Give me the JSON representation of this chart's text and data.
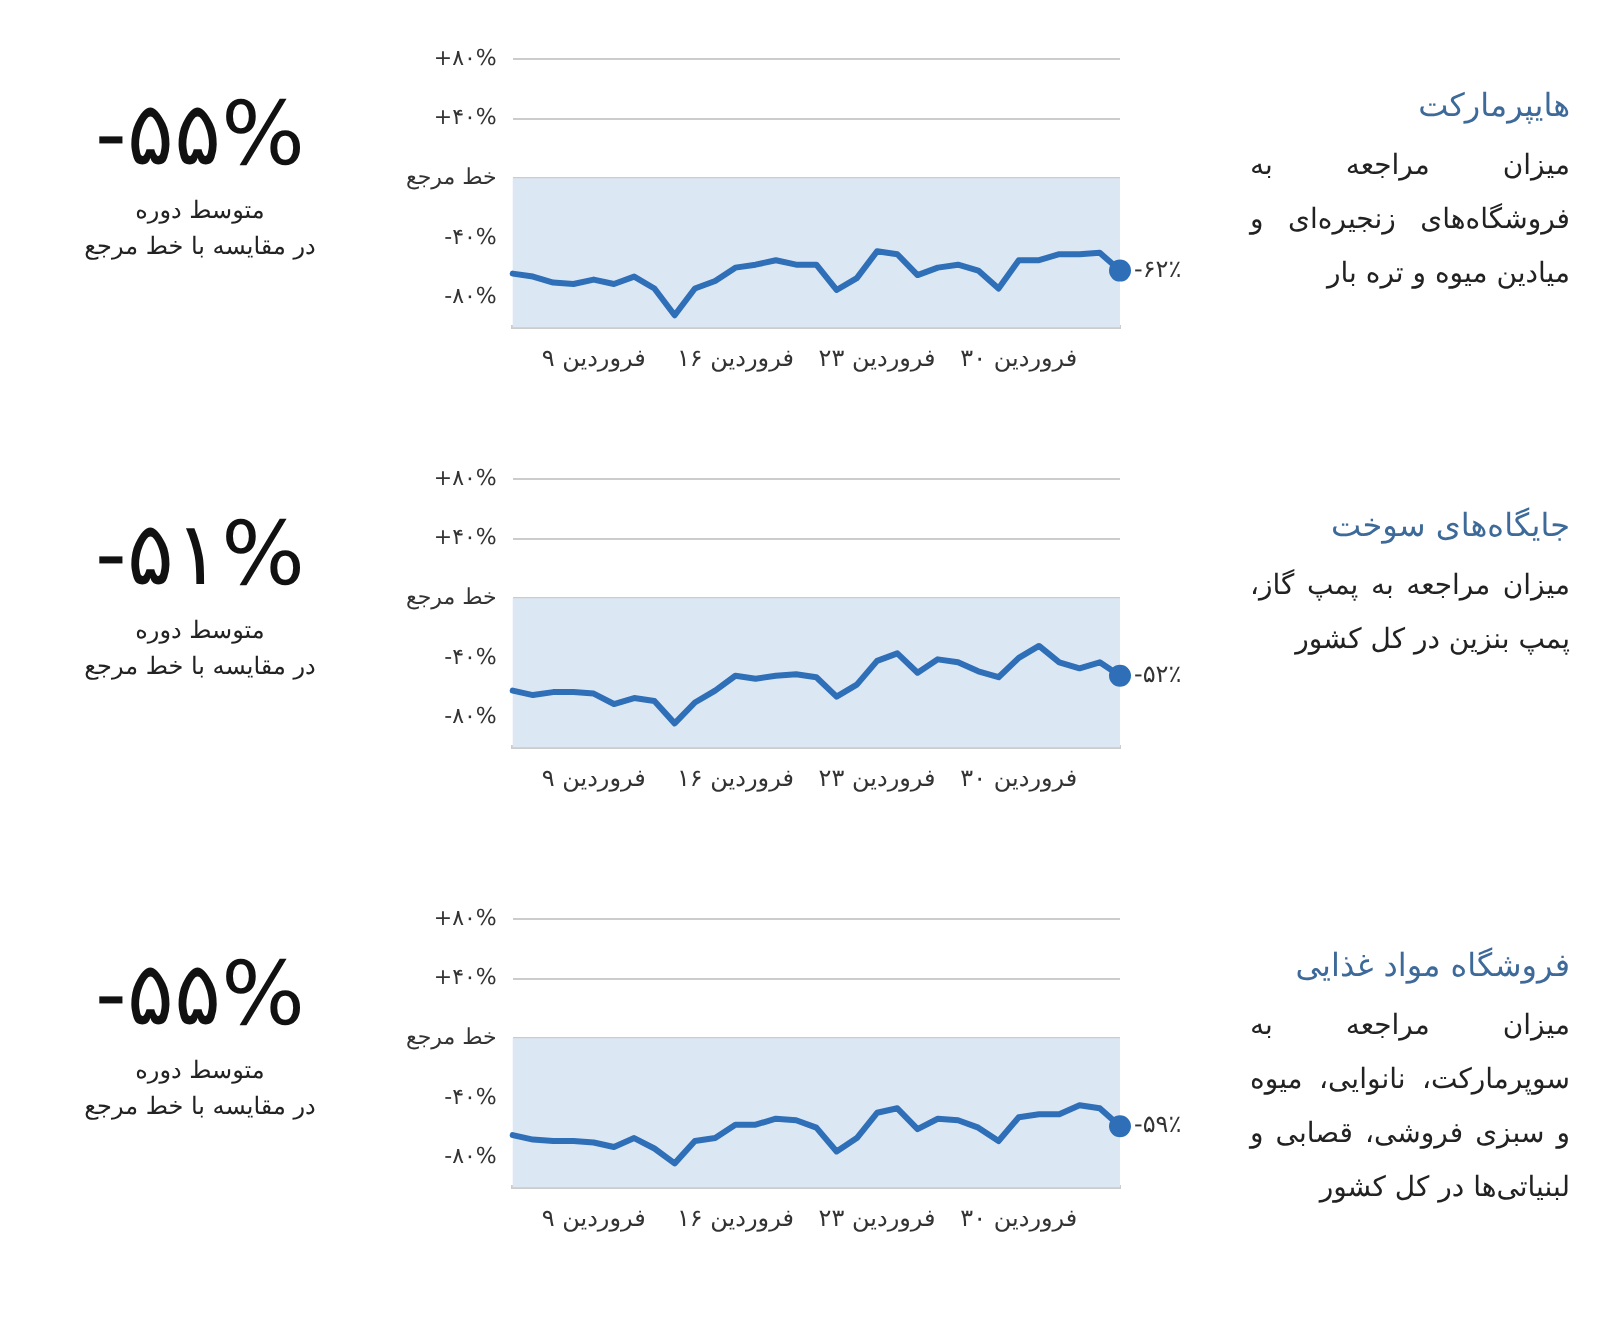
{
  "chart_data": [
    {
      "type": "line",
      "annotations": [
        "-۵۵%",
        "متوسط دوره",
        "در مقایسه با خط مرجع",
        "-۶۲٪",
        "هایپرمارکت",
        "میزان مراجعه به فروشگاه‌های زنجیره‌ای و میادین میوه و تره بار"
      ],
      "categories": [
        null,
        null,
        null,
        null,
        "۹ فروردین",
        null,
        null,
        null,
        null,
        null,
        null,
        "۱۶ فروردین",
        null,
        null,
        null,
        null,
        null,
        null,
        "۲۳ فروردین",
        null,
        null,
        null,
        null,
        null,
        null,
        "۳۰ فروردین",
        null,
        null,
        null,
        null,
        null
      ],
      "series": [
        {
          "color": "#2f6fb8",
          "values": [
            -64,
            -66,
            -70,
            -71,
            -68,
            -71,
            -66,
            -74,
            -92,
            -74,
            -69,
            -60,
            -58,
            -55,
            -58,
            -58,
            -75,
            -67,
            -49,
            -51,
            -65,
            -60,
            -58,
            -62,
            -74,
            -55,
            -55,
            -51,
            -51,
            -50,
            -62
          ]
        }
      ],
      "ylim": [
        -100,
        80
      ],
      "yticks": [
        {
          "value": 80,
          "label": "+۸۰%"
        },
        {
          "value": 40,
          "label": "+۴۰%"
        },
        {
          "value": 0,
          "label": "خط مرجع"
        },
        {
          "value": -40,
          "label": "-۴۰%"
        },
        {
          "value": -80,
          "label": "-۸۰%"
        }
      ],
      "bands": [
        {
          "axis": "y",
          "from": -100,
          "to": 0,
          "color": "#dce7f4"
        }
      ],
      "grid": "y",
      "legend": false
    },
    {
      "type": "line",
      "annotations": [
        "-۵۱%",
        "متوسط دوره",
        "در مقایسه با خط مرجع",
        "-۵۲٪",
        "جایگاه‌های سوخت",
        "میزان مراجعه به پمپ گاز، پمپ بنزین در کل کشور"
      ],
      "categories": [
        null,
        null,
        null,
        null,
        "۹ فروردین",
        null,
        null,
        null,
        null,
        null,
        null,
        "۱۶ فروردین",
        null,
        null,
        null,
        null,
        null,
        null,
        "۲۳ فروردین",
        null,
        null,
        null,
        null,
        null,
        null,
        "۳۰ فروردین",
        null,
        null,
        null,
        null,
        null
      ],
      "series": [
        {
          "color": "#2f6fb8",
          "values": [
            -62,
            -65,
            -63,
            -63,
            -64,
            -71,
            -67,
            -69,
            -84,
            -70,
            -62,
            -52,
            -54,
            -52,
            -51,
            -53,
            -66,
            -58,
            -42,
            -37,
            -50,
            -41,
            -43,
            -49,
            -53,
            -40,
            -32,
            -43,
            -47,
            -43,
            -52
          ]
        }
      ],
      "ylim": [
        -100,
        80
      ],
      "yticks": [
        {
          "value": 80,
          "label": "+۸۰%"
        },
        {
          "value": 40,
          "label": "+۴۰%"
        },
        {
          "value": 0,
          "label": "خط مرجع"
        },
        {
          "value": -40,
          "label": "-۴۰%"
        },
        {
          "value": -80,
          "label": "-۸۰%"
        }
      ],
      "bands": [
        {
          "axis": "y",
          "from": -100,
          "to": 0,
          "color": "#dce7f4"
        }
      ],
      "grid": "y",
      "legend": false
    },
    {
      "type": "line",
      "annotations": [
        "-۵۵%",
        "متوسط دوره",
        "در مقایسه با خط مرجع",
        "-۵۹٪",
        "فروشگاه مواد غذایی",
        "میزان مراجعه به سوپرمارکت، نانوایی، میوه و سبزی فروشی، قصابی و لبنیاتی‌ها در کل کشور"
      ],
      "categories": [
        null,
        null,
        null,
        null,
        "۹ فروردین",
        null,
        null,
        null,
        null,
        null,
        null,
        "۱۶ فروردین",
        null,
        null,
        null,
        null,
        null,
        null,
        "۲۳ فروردین",
        null,
        null,
        null,
        null,
        null,
        null,
        "۳۰ فروردین",
        null,
        null,
        null,
        null,
        null
      ],
      "series": [
        {
          "color": "#2f6fb8",
          "values": [
            -65,
            -68,
            -69,
            -69,
            -70,
            -73,
            -67,
            -74,
            -84,
            -69,
            -67,
            -58,
            -58,
            -54,
            -55,
            -60,
            -76,
            -67,
            -50,
            -47,
            -61,
            -54,
            -55,
            -60,
            -69,
            -53,
            -51,
            -51,
            -45,
            -47,
            -59
          ]
        }
      ],
      "ylim": [
        -100,
        80
      ],
      "yticks": [
        {
          "value": 80,
          "label": "+۸۰%"
        },
        {
          "value": 40,
          "label": "+۴۰%"
        },
        {
          "value": 0,
          "label": "خط مرجع"
        },
        {
          "value": -40,
          "label": "-۴۰%"
        },
        {
          "value": -80,
          "label": "-۸۰%"
        }
      ],
      "bands": [
        {
          "axis": "y",
          "from": -100,
          "to": 0,
          "color": "#dce7f4"
        }
      ],
      "grid": "y",
      "legend": false
    }
  ]
}
